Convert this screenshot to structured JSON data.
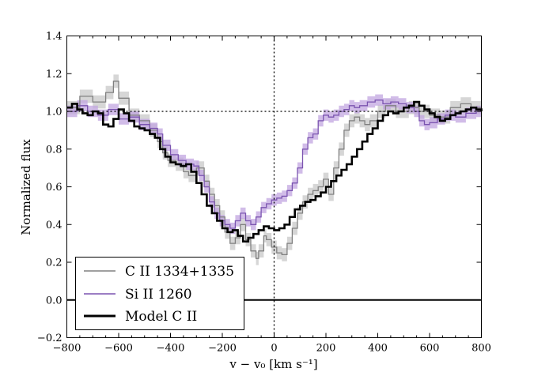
{
  "chart_data": {
    "type": "line",
    "xlabel": "v − v₀ [km s⁻¹]",
    "ylabel": "Normalized flux",
    "xlim": [
      -800,
      800
    ],
    "ylim": [
      -0.2,
      1.4
    ],
    "x_ticks": [
      "−800",
      "−600",
      "−400",
      "−200",
      "0",
      "200",
      "400",
      "600",
      "800"
    ],
    "y_ticks": [
      "−0.2",
      "0.0",
      "0.2",
      "0.4",
      "0.6",
      "0.8",
      "1.0",
      "1.2",
      "1.4"
    ],
    "grid": false,
    "reference_lines": {
      "continuum_y": 1.0,
      "zero_y": 0.0,
      "systemic_x": 0
    },
    "legend": {
      "position": "bottom-left",
      "entries": [
        "C II 1334+1335",
        "Si II 1260",
        "Model C II"
      ]
    },
    "series": [
      {
        "name": "C II 1334+1335",
        "color": "#808080",
        "band_color": "#c8c8c8",
        "points": [
          [
            -800,
            1.02
          ],
          [
            -750,
            1.08
          ],
          [
            -700,
            1.05
          ],
          [
            -650,
            1.1
          ],
          [
            -620,
            1.16
          ],
          [
            -600,
            1.07
          ],
          [
            -560,
            0.98
          ],
          [
            -520,
            0.95
          ],
          [
            -480,
            0.9
          ],
          [
            -450,
            0.84
          ],
          [
            -430,
            0.78
          ],
          [
            -410,
            0.74
          ],
          [
            -380,
            0.72
          ],
          [
            -350,
            0.68
          ],
          [
            -330,
            0.66
          ],
          [
            -300,
            0.7
          ],
          [
            -270,
            0.63
          ],
          [
            -250,
            0.56
          ],
          [
            -230,
            0.5
          ],
          [
            -210,
            0.44
          ],
          [
            -190,
            0.36
          ],
          [
            -170,
            0.3
          ],
          [
            -150,
            0.33
          ],
          [
            -130,
            0.4
          ],
          [
            -110,
            0.32
          ],
          [
            -90,
            0.26
          ],
          [
            -70,
            0.22
          ],
          [
            -60,
            0.26
          ],
          [
            -40,
            0.34
          ],
          [
            -30,
            0.32
          ],
          [
            -10,
            0.28
          ],
          [
            10,
            0.25
          ],
          [
            30,
            0.24
          ],
          [
            50,
            0.3
          ],
          [
            70,
            0.38
          ],
          [
            90,
            0.46
          ],
          [
            110,
            0.52
          ],
          [
            130,
            0.56
          ],
          [
            150,
            0.58
          ],
          [
            170,
            0.6
          ],
          [
            190,
            0.64
          ],
          [
            210,
            0.56
          ],
          [
            230,
            0.7
          ],
          [
            250,
            0.8
          ],
          [
            270,
            0.9
          ],
          [
            290,
            0.95
          ],
          [
            310,
            0.97
          ],
          [
            330,
            0.95
          ],
          [
            350,
            0.93
          ],
          [
            370,
            0.95
          ],
          [
            400,
            1.0
          ],
          [
            430,
            1.03
          ],
          [
            470,
            1.0
          ],
          [
            520,
            1.02
          ],
          [
            560,
            1.0
          ],
          [
            600,
            0.98
          ],
          [
            640,
            0.97
          ],
          [
            680,
            1.02
          ],
          [
            720,
            1.04
          ],
          [
            760,
            1.02
          ],
          [
            800,
            1.0
          ]
        ]
      },
      {
        "name": "Si II 1260",
        "color": "#7b54b0",
        "band_color": "#c2a6e0",
        "points": [
          [
            -800,
            1.0
          ],
          [
            -760,
            1.03
          ],
          [
            -720,
            1.0
          ],
          [
            -680,
            0.98
          ],
          [
            -640,
            1.01
          ],
          [
            -600,
            0.96
          ],
          [
            -560,
            0.97
          ],
          [
            -520,
            0.93
          ],
          [
            -480,
            0.91
          ],
          [
            -450,
            0.88
          ],
          [
            -430,
            0.82
          ],
          [
            -400,
            0.77
          ],
          [
            -370,
            0.74
          ],
          [
            -340,
            0.72
          ],
          [
            -310,
            0.71
          ],
          [
            -290,
            0.66
          ],
          [
            -270,
            0.6
          ],
          [
            -250,
            0.52
          ],
          [
            -230,
            0.46
          ],
          [
            -210,
            0.42
          ],
          [
            -190,
            0.4
          ],
          [
            -170,
            0.38
          ],
          [
            -150,
            0.42
          ],
          [
            -130,
            0.46
          ],
          [
            -110,
            0.42
          ],
          [
            -90,
            0.4
          ],
          [
            -70,
            0.44
          ],
          [
            -50,
            0.49
          ],
          [
            -30,
            0.51
          ],
          [
            -10,
            0.53
          ],
          [
            10,
            0.54
          ],
          [
            30,
            0.55
          ],
          [
            50,
            0.58
          ],
          [
            70,
            0.62
          ],
          [
            90,
            0.7
          ],
          [
            110,
            0.8
          ],
          [
            130,
            0.86
          ],
          [
            150,
            0.88
          ],
          [
            170,
            0.95
          ],
          [
            190,
            0.98
          ],
          [
            210,
            0.97
          ],
          [
            230,
            0.98
          ],
          [
            250,
            1.0
          ],
          [
            270,
            1.01
          ],
          [
            290,
            1.03
          ],
          [
            310,
            1.02
          ],
          [
            330,
            1.03
          ],
          [
            360,
            1.05
          ],
          [
            390,
            1.06
          ],
          [
            420,
            1.04
          ],
          [
            450,
            1.05
          ],
          [
            480,
            1.04
          ],
          [
            510,
            1.02
          ],
          [
            540,
            1.0
          ],
          [
            560,
            0.95
          ],
          [
            580,
            0.93
          ],
          [
            600,
            0.94
          ],
          [
            630,
            0.96
          ],
          [
            660,
            0.98
          ],
          [
            700,
            0.97
          ],
          [
            740,
            0.99
          ],
          [
            780,
            1.0
          ],
          [
            800,
            1.0
          ]
        ]
      },
      {
        "name": "Model C II",
        "color": "#000000",
        "points": [
          [
            -800,
            1.02
          ],
          [
            -780,
            1.04
          ],
          [
            -760,
            1.01
          ],
          [
            -740,
            0.99
          ],
          [
            -720,
            0.98
          ],
          [
            -700,
            1.0
          ],
          [
            -680,
            0.99
          ],
          [
            -660,
            0.93
          ],
          [
            -640,
            0.92
          ],
          [
            -620,
            0.96
          ],
          [
            -600,
            1.01
          ],
          [
            -580,
            0.99
          ],
          [
            -560,
            0.95
          ],
          [
            -540,
            0.92
          ],
          [
            -520,
            0.91
          ],
          [
            -500,
            0.9
          ],
          [
            -480,
            0.88
          ],
          [
            -460,
            0.86
          ],
          [
            -440,
            0.8
          ],
          [
            -420,
            0.76
          ],
          [
            -400,
            0.73
          ],
          [
            -380,
            0.72
          ],
          [
            -360,
            0.71
          ],
          [
            -340,
            0.72
          ],
          [
            -320,
            0.68
          ],
          [
            -300,
            0.62
          ],
          [
            -280,
            0.56
          ],
          [
            -260,
            0.5
          ],
          [
            -240,
            0.46
          ],
          [
            -220,
            0.42
          ],
          [
            -200,
            0.38
          ],
          [
            -180,
            0.36
          ],
          [
            -160,
            0.37
          ],
          [
            -140,
            0.34
          ],
          [
            -120,
            0.31
          ],
          [
            -100,
            0.33
          ],
          [
            -80,
            0.35
          ],
          [
            -60,
            0.37
          ],
          [
            -40,
            0.39
          ],
          [
            -20,
            0.38
          ],
          [
            0,
            0.37
          ],
          [
            20,
            0.38
          ],
          [
            40,
            0.4
          ],
          [
            60,
            0.44
          ],
          [
            80,
            0.48
          ],
          [
            100,
            0.5
          ],
          [
            120,
            0.52
          ],
          [
            140,
            0.53
          ],
          [
            160,
            0.55
          ],
          [
            180,
            0.57
          ],
          [
            200,
            0.6
          ],
          [
            220,
            0.63
          ],
          [
            240,
            0.66
          ],
          [
            260,
            0.69
          ],
          [
            280,
            0.72
          ],
          [
            300,
            0.76
          ],
          [
            320,
            0.8
          ],
          [
            340,
            0.84
          ],
          [
            360,
            0.88
          ],
          [
            380,
            0.91
          ],
          [
            400,
            0.95
          ],
          [
            420,
            0.98
          ],
          [
            440,
            1.0
          ],
          [
            460,
            0.99
          ],
          [
            480,
            1.0
          ],
          [
            500,
            1.02
          ],
          [
            520,
            1.03
          ],
          [
            540,
            1.05
          ],
          [
            560,
            1.03
          ],
          [
            580,
            1.01
          ],
          [
            600,
            0.99
          ],
          [
            620,
            0.97
          ],
          [
            640,
            0.95
          ],
          [
            660,
            0.96
          ],
          [
            680,
            0.98
          ],
          [
            700,
            0.99
          ],
          [
            720,
            1.0
          ],
          [
            740,
            1.01
          ],
          [
            760,
            1.02
          ],
          [
            780,
            1.01
          ],
          [
            800,
            1.0
          ]
        ]
      }
    ]
  }
}
